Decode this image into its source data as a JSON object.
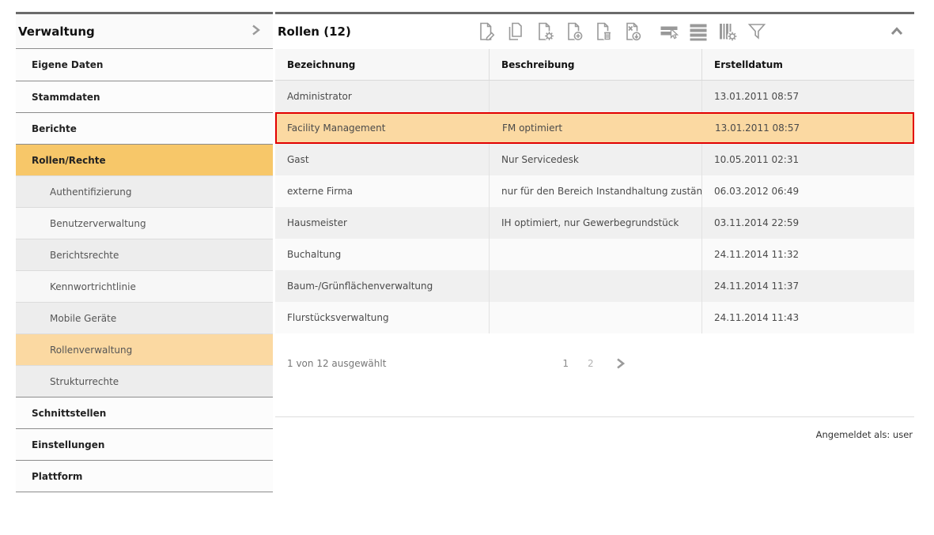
{
  "colors": {
    "topbar": "#6b6b6b",
    "accent_selected_nav": "#f7c769",
    "accent_selected_sub": "#fbd9a2",
    "selected_row_bg": "#fbd9a2",
    "selected_row_border": "#e20000",
    "icon_gray": "#999999"
  },
  "sidebar": {
    "title": "Verwaltung",
    "expand_icon": "chevron-right-icon",
    "items": [
      {
        "label": "Eigene Daten",
        "level": 1,
        "active": false
      },
      {
        "label": "Stammdaten",
        "level": 1,
        "active": false
      },
      {
        "label": "Berichte",
        "level": 1,
        "active": false
      },
      {
        "label": "Rollen/Rechte",
        "level": 1,
        "active": true
      },
      {
        "label": "Authentifizierung",
        "level": 2,
        "active": false
      },
      {
        "label": "Benutzerverwaltung",
        "level": 2,
        "active": false
      },
      {
        "label": "Berichtsrechte",
        "level": 2,
        "active": false
      },
      {
        "label": "Kennwortrichtlinie",
        "level": 2,
        "active": false
      },
      {
        "label": "Mobile Geräte",
        "level": 2,
        "active": false
      },
      {
        "label": "Rollenverwaltung",
        "level": 2,
        "active": true
      },
      {
        "label": "Strukturrechte",
        "level": 2,
        "active": false
      },
      {
        "label": "Schnittstellen",
        "level": 1,
        "active": false
      },
      {
        "label": "Einstellungen",
        "level": 1,
        "active": false
      },
      {
        "label": "Plattform",
        "level": 1,
        "active": false
      }
    ]
  },
  "main": {
    "title": "Rollen (12)",
    "toolbar": [
      {
        "name": "edit-role",
        "icon": "document-edit-icon"
      },
      {
        "name": "copy-role",
        "icon": "document-copy-icon"
      },
      {
        "name": "role-settings",
        "icon": "document-gear-icon"
      },
      {
        "name": "add-role",
        "icon": "document-plus-icon"
      },
      {
        "name": "delete-role",
        "icon": "document-trash-icon"
      },
      {
        "name": "export-roles",
        "icon": "document-export-icon"
      },
      {
        "name": "select-rows",
        "icon": "rows-cursor-icon"
      },
      {
        "name": "list-view",
        "icon": "rows-icon"
      },
      {
        "name": "column-settings",
        "icon": "columns-gear-icon"
      },
      {
        "name": "filter",
        "icon": "funnel-icon"
      }
    ],
    "collapse_icon": "chevron-up-icon",
    "table": {
      "columns": [
        "Bezeichnung",
        "Beschreibung",
        "Erstelldatum"
      ],
      "selected_row_index": 1,
      "rows": [
        {
          "bezeichnung": "Administrator",
          "beschreibung": "",
          "erstelldatum": "13.01.2011 08:57"
        },
        {
          "bezeichnung": "Facility Management",
          "beschreibung": "FM optimiert",
          "erstelldatum": "13.01.2011 08:57"
        },
        {
          "bezeichnung": "Gast",
          "beschreibung": "Nur Servicedesk",
          "erstelldatum": "10.05.2011 02:31"
        },
        {
          "bezeichnung": "externe Firma",
          "beschreibung": "nur für den Bereich Instandhaltung zuständig",
          "erstelldatum": "06.03.2012 06:49"
        },
        {
          "bezeichnung": "Hausmeister",
          "beschreibung": "IH optimiert, nur Gewerbegrundstück",
          "erstelldatum": "03.11.2014 22:59"
        },
        {
          "bezeichnung": "Buchaltung",
          "beschreibung": "",
          "erstelldatum": "24.11.2014 11:32"
        },
        {
          "bezeichnung": "Baum-/Grünflächenverwaltung",
          "beschreibung": "",
          "erstelldatum": "24.11.2014 11:37"
        },
        {
          "bezeichnung": "Flurstücksverwaltung",
          "beschreibung": "",
          "erstelldatum": "24.11.2014 11:43"
        }
      ]
    },
    "pagination": {
      "status": "1 von 12 ausgewählt",
      "pages": [
        "1",
        "2"
      ],
      "current_page": "1"
    },
    "footer": {
      "logged_in_as": "Angemeldet als: user"
    }
  }
}
